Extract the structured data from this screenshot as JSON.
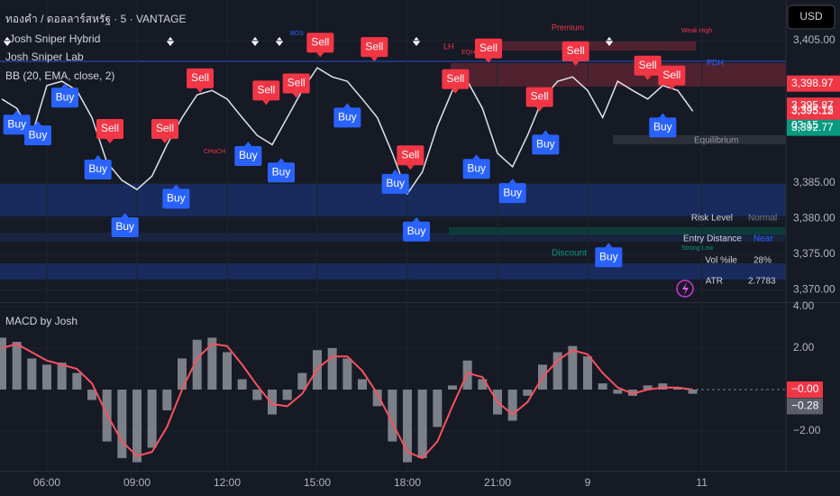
{
  "chart_data": [
    {
      "type": "line",
      "title": "ทองคำ / ดอลลาร์สหรัฐ · 5 · VANTAGE",
      "indicators": [
        "Josh Sniper Hybrid",
        "Josh Sniper Lab",
        "BB (20, EMA, close, 2)"
      ],
      "currency": "USD",
      "color": "#e0e3eb",
      "x": [
        4.5,
        5,
        5.5,
        6,
        6.5,
        7,
        7.5,
        8,
        8.5,
        9,
        9.5,
        10,
        10.5,
        11,
        11.5,
        12,
        12.5,
        13,
        13.5,
        14,
        14.5,
        15,
        15.5,
        16,
        16.5,
        17,
        17.5,
        18,
        18.5,
        19,
        19.5,
        20,
        20.5,
        21,
        21.5,
        22,
        22.5,
        23,
        23.5,
        24,
        24.5,
        25,
        25.5,
        26,
        26.5,
        27,
        27.5
      ],
      "values": [
        3396.8,
        3395.5,
        3391.7,
        3398.7,
        3399.3,
        3398,
        3394.2,
        3387.9,
        3385.4,
        3384.1,
        3386,
        3390.4,
        3394.2,
        3397.4,
        3398,
        3396.8,
        3394.2,
        3391.7,
        3390.4,
        3394.2,
        3398,
        3401.2,
        3399.9,
        3399.3,
        3396.8,
        3394.2,
        3389.2,
        3383.5,
        3386.6,
        3393,
        3398,
        3399.3,
        3395.5,
        3389.2,
        3387.3,
        3391.7,
        3396.8,
        3399.3,
        3399.9,
        3398,
        3394.2,
        3399.3,
        3398,
        3396.8,
        3398.7,
        3398,
        3395.1
      ],
      "xlim": [
        4.44,
        30.6
      ],
      "xticks": [
        {
          "value": 6,
          "label": "06:00"
        },
        {
          "value": 9,
          "label": "09:00"
        },
        {
          "value": 12,
          "label": "12:00"
        },
        {
          "value": 15,
          "label": "15:00"
        },
        {
          "value": 18,
          "label": "18:00"
        },
        {
          "value": 21,
          "label": "21:00"
        },
        {
          "value": 24,
          "label": "9"
        },
        {
          "value": 27.8,
          "label": "11"
        }
      ],
      "ylim": [
        3368.3,
        3410.7
      ],
      "yticks": [
        {
          "value": 3405,
          "label": "3,405.00"
        },
        {
          "value": 3385,
          "label": "3,385.00"
        },
        {
          "value": 3380,
          "label": "3,380.00"
        },
        {
          "value": 3375,
          "label": "3,375.00"
        },
        {
          "value": 3370,
          "label": "3,370.00"
        }
      ],
      "price_labels": [
        {
          "value": 3398.97,
          "label": "3,398.97",
          "color": "#f23645"
        },
        {
          "value": 3395.87,
          "label": "3,395.87",
          "color": "#f23645"
        },
        {
          "value": 3395.15,
          "label": "3,395.15",
          "color": "#089981"
        },
        {
          "value": 3395.12,
          "label": "3,395.12",
          "color": "#f23645",
          "countdown": "03:15"
        },
        {
          "value": 3392.77,
          "label": "3,392.77",
          "color": "#089981"
        }
      ],
      "signals": [
        {
          "label": "Sell",
          "x": 11.1,
          "y": 3399.7
        },
        {
          "label": "Sell",
          "x": 8.1,
          "y": 3392.6
        },
        {
          "label": "Sell",
          "x": 9.93,
          "y": 3392.6
        },
        {
          "label": "Sell",
          "x": 13.3,
          "y": 3398
        },
        {
          "label": "Sell",
          "x": 14.3,
          "y": 3399
        },
        {
          "label": "Sell",
          "x": 15.1,
          "y": 3404.7
        },
        {
          "label": "Sell",
          "x": 16.9,
          "y": 3404.1
        },
        {
          "label": "Sell",
          "x": 19.6,
          "y": 3399.6
        },
        {
          "label": "Sell",
          "x": 20.7,
          "y": 3403.9
        },
        {
          "label": "Sell",
          "x": 22.4,
          "y": 3397.1
        },
        {
          "label": "Sell",
          "x": 23.6,
          "y": 3403.5
        },
        {
          "label": "Sell",
          "x": 26,
          "y": 3401.5
        },
        {
          "label": "Sell",
          "x": 26.8,
          "y": 3400.1
        },
        {
          "label": "Sell",
          "x": 18.1,
          "y": 3388.9
        },
        {
          "label": "Buy",
          "x": 6.6,
          "y": 3397
        },
        {
          "label": "Buy",
          "x": 5,
          "y": 3393.2
        },
        {
          "label": "Buy",
          "x": 5.7,
          "y": 3391.7
        },
        {
          "label": "Buy",
          "x": 7.7,
          "y": 3386.9
        },
        {
          "label": "Buy",
          "x": 8.6,
          "y": 3378.8
        },
        {
          "label": "Buy",
          "x": 10.3,
          "y": 3382.8
        },
        {
          "label": "Buy",
          "x": 12.7,
          "y": 3388.8
        },
        {
          "label": "Buy",
          "x": 13.8,
          "y": 3386.5
        },
        {
          "label": "Buy",
          "x": 16,
          "y": 3394.2
        },
        {
          "label": "Buy",
          "x": 17.6,
          "y": 3384.9
        },
        {
          "label": "Buy",
          "x": 18.3,
          "y": 3378.2
        },
        {
          "label": "Buy",
          "x": 20.3,
          "y": 3387
        },
        {
          "label": "Buy",
          "x": 21.5,
          "y": 3383.6
        },
        {
          "label": "Buy",
          "x": 22.6,
          "y": 3390.4
        },
        {
          "label": "Buy",
          "x": 24.7,
          "y": 3374.6
        },
        {
          "label": "Buy",
          "x": 26.5,
          "y": 3392.8
        }
      ],
      "annotations": [
        "Premium",
        "Weak High",
        "PDH",
        "Equilibrium",
        "Discount",
        "Strong Low",
        "LH",
        "EQH",
        "BOS",
        "CHoCH"
      ],
      "table": [
        [
          "Risk Level",
          "Normal"
        ],
        [
          "Entry Distance",
          "Near"
        ],
        [
          "Vol %ile",
          "28%"
        ],
        [
          "ATR",
          "2.7783"
        ]
      ]
    },
    {
      "type": "macd",
      "title": "MACD by Josh",
      "x": [
        4.5,
        5,
        5.5,
        6,
        6.5,
        7,
        7.5,
        8,
        8.5,
        9,
        9.5,
        10,
        10.5,
        11,
        11.5,
        12,
        12.5,
        13,
        13.5,
        14,
        14.5,
        15,
        15.5,
        16,
        16.5,
        17,
        17.5,
        18,
        18.5,
        19,
        19.5,
        20,
        20.5,
        21,
        21.5,
        22,
        22.5,
        23,
        23.5,
        24,
        24.5,
        25,
        25.5,
        26,
        26.5,
        27,
        27.5
      ],
      "series": [
        {
          "name": "Histogram",
          "color": "#9598a1",
          "values": [
            2.5,
            2.3,
            1.5,
            1.2,
            1.3,
            0.8,
            -0.5,
            -2.5,
            -3.3,
            -3.5,
            -2.8,
            -1,
            1.5,
            2.4,
            2.5,
            1.8,
            0.5,
            -0.5,
            -1.2,
            -0.5,
            0.8,
            1.9,
            2,
            1.5,
            0.5,
            -0.8,
            -2.5,
            -3.5,
            -3.3,
            -1.8,
            0.2,
            1.4,
            0.5,
            -1.2,
            -1.5,
            -0.3,
            1.2,
            1.8,
            2.1,
            1.6,
            0.3,
            -0.2,
            -0.3,
            0.2,
            0.3,
            0.1,
            -0.2
          ]
        },
        {
          "name": "Signal",
          "color": "#f7525f",
          "values": [
            2,
            2.2,
            1.8,
            1.4,
            1.2,
            1,
            0.3,
            -1.2,
            -2.5,
            -3.2,
            -3,
            -1.8,
            0,
            1.5,
            2.2,
            2.1,
            1.2,
            0.2,
            -0.7,
            -0.8,
            -0.2,
            1,
            1.6,
            1.6,
            0.9,
            -0.2,
            -1.6,
            -3,
            -3.3,
            -2.5,
            -0.8,
            0.8,
            0.6,
            -0.6,
            -1.2,
            -0.6,
            0.6,
            1.4,
            1.9,
            1.7,
            0.8,
            0.1,
            -0.2,
            0,
            0.1,
            0.1,
            0
          ]
        }
      ],
      "xlim": [
        4.44,
        30.6
      ],
      "ylim": [
        -3.91,
        4.17
      ],
      "yticks": [
        {
          "value": 4,
          "label": "4.00"
        },
        {
          "value": 2,
          "label": "2.00"
        },
        {
          "value": -2,
          "label": "−2.00"
        }
      ],
      "value_labels": [
        {
          "value": 0,
          "label": "−0.00",
          "color": "#f23645"
        },
        {
          "value": -0.28,
          "label": "−0.28",
          "color": "#5d606b"
        }
      ]
    }
  ]
}
